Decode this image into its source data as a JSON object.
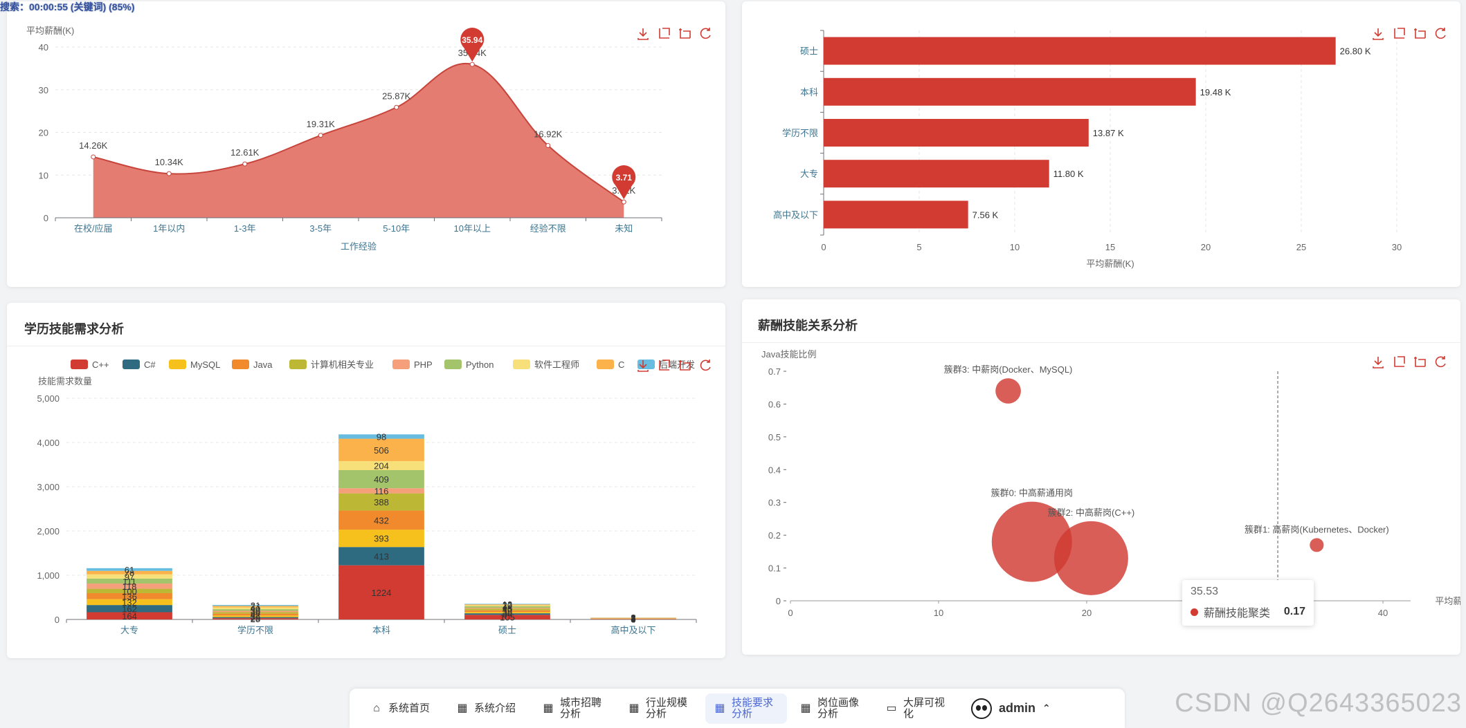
{
  "status": "搜索：00:00:55 (关键词) (85%)",
  "colors": {
    "red": "#d13b32",
    "areaRed": "#e47c72"
  },
  "toolbox_icons": [
    "download-icon",
    "zoom-icon",
    "zoom-reset-icon",
    "restore-icon"
  ],
  "chart_data": [
    {
      "type": "area",
      "id": "experience",
      "title": "",
      "ylabel": "平均薪酬(K)",
      "xlabel": "工作经验",
      "categories": [
        "在校/应届",
        "1年以内",
        "1-3年",
        "3-5年",
        "5-10年",
        "10年以上",
        "经验不限",
        "未知"
      ],
      "values": [
        14.26,
        10.34,
        12.61,
        19.31,
        25.87,
        35.94,
        16.92,
        3.71
      ],
      "value_labels": [
        "14.26K",
        "10.34K",
        "12.61K",
        "19.31K",
        "25.87K",
        "35.94K",
        "16.92K",
        "3.71K"
      ],
      "ylim": [
        0,
        40
      ],
      "yticks": [
        0,
        10,
        20,
        30,
        40
      ],
      "markers": {
        "max": "35.94",
        "min": "3.71"
      }
    },
    {
      "type": "bar",
      "id": "education",
      "orientation": "horizontal",
      "xlabel": "平均薪酬(K)",
      "categories": [
        "硕士",
        "本科",
        "学历不限",
        "大专",
        "高中及以下"
      ],
      "values": [
        26.8,
        19.48,
        13.87,
        11.8,
        7.56
      ],
      "value_labels": [
        "26.80 K",
        "19.48 K",
        "13.87 K",
        "11.80 K",
        "7.56 K"
      ],
      "xlim": [
        0,
        30
      ],
      "xticks": [
        0,
        5,
        10,
        15,
        20,
        25,
        30
      ]
    },
    {
      "type": "bar",
      "id": "skills",
      "stacked": true,
      "title": "学历技能需求分析",
      "ylabel": "技能需求数量",
      "categories": [
        "大专",
        "学历不限",
        "本科",
        "硕士",
        "高中及以下"
      ],
      "ylim": [
        0,
        5000
      ],
      "yticks": [
        "0",
        "1,000",
        "2,000",
        "3,000",
        "4,000",
        "5,000"
      ],
      "series": [
        {
          "name": "C++",
          "color": "#d13b32",
          "values": [
            164,
            28,
            1224,
            105,
            8
          ]
        },
        {
          "name": "C#",
          "color": "#2e6b80",
          "values": [
            162,
            25,
            413,
            34,
            4
          ]
        },
        {
          "name": "MySQL",
          "color": "#f6c11c",
          "values": [
            132,
            36,
            393,
            30,
            6
          ]
        },
        {
          "name": "Java",
          "color": "#f08a2c",
          "values": [
            136,
            42,
            432,
            38,
            7
          ]
        },
        {
          "name": "计算机相关专业",
          "color": "#bdb736",
          "values": [
            100,
            34,
            388,
            40,
            3
          ]
        },
        {
          "name": "PHP",
          "color": "#f5a07a",
          "values": [
            118,
            30,
            116,
            18,
            4
          ]
        },
        {
          "name": "Python",
          "color": "#a3c46a",
          "values": [
            111,
            38,
            409,
            34,
            3
          ]
        },
        {
          "name": "软件工程师",
          "color": "#f7e07a",
          "values": [
            97,
            40,
            204,
            22,
            3
          ]
        },
        {
          "name": "C",
          "color": "#fbb24a",
          "values": [
            78,
            34,
            506,
            20,
            5
          ]
        },
        {
          "name": "后端开发",
          "color": "#66bde0",
          "values": [
            61,
            21,
            98,
            12,
            2
          ]
        }
      ]
    },
    {
      "type": "scatter",
      "id": "clusters",
      "title": "薪酬技能关系分析",
      "xlabel": "平均薪酬(K)",
      "ylabel": "Java技能比例",
      "xlim": [
        0,
        40
      ],
      "ylim": [
        0,
        0.7
      ],
      "xticks": [
        0,
        10,
        20,
        40
      ],
      "yticks": [
        0,
        0.1,
        0.2,
        0.3,
        0.4,
        0.5,
        0.6,
        0.7
      ],
      "points": [
        {
          "label": "簇群3: 中薪岗(Docker、MySQL)",
          "x": 14.7,
          "y": 0.64,
          "size": 0.1
        },
        {
          "label": "簇群0: 中高薪通用岗",
          "x": 16.3,
          "y": 0.18,
          "size": 1.0
        },
        {
          "label": "簇群2: 中高薪岗(C++)",
          "x": 20.3,
          "y": 0.13,
          "size": 0.85
        },
        {
          "label": "簇群1: 高薪岗(Kubernetes、Docker)",
          "x": 35.53,
          "y": 0.17,
          "size": 0.03
        }
      ],
      "markline_x": 32.9
    }
  ],
  "tooltip": {
    "x_value": "35.53",
    "series": "薪酬技能聚类",
    "value": "0.17"
  },
  "nav": {
    "items": [
      {
        "icon": "⌂",
        "label": "系统首页",
        "active": false
      },
      {
        "icon": "▦",
        "label": "系统介绍",
        "active": false
      },
      {
        "icon": "▦",
        "label": "城市招聘分析",
        "active": false
      },
      {
        "icon": "▦",
        "label": "行业规模分析",
        "active": false
      },
      {
        "icon": "▦",
        "label": "技能要求分析",
        "active": true
      },
      {
        "icon": "▦",
        "label": "岗位画像分析",
        "active": false
      },
      {
        "icon": "▭",
        "label": "大屏可视化",
        "active": false
      }
    ],
    "user": "admin"
  },
  "watermark": "CSDN @Q2643365023"
}
